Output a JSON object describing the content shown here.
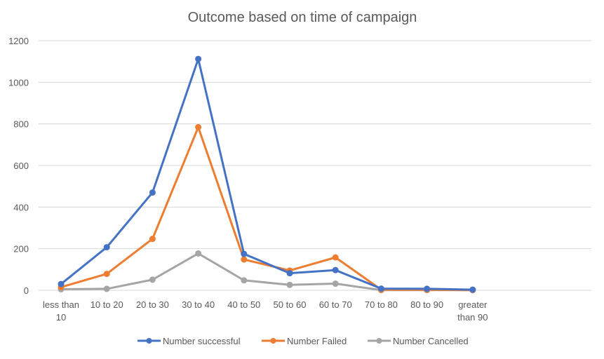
{
  "chart_data": {
    "type": "line",
    "title": "Outcome based on time of campaign",
    "xlabel": "",
    "ylabel": "",
    "categories": [
      [
        "less than",
        "10"
      ],
      [
        "10 to 20"
      ],
      [
        "20 to 30"
      ],
      [
        "30 to 40"
      ],
      [
        "40 to 50"
      ],
      [
        "50 to 60"
      ],
      [
        "60 to 70"
      ],
      [
        "70 to 80"
      ],
      [
        "80 to 90"
      ],
      [
        "greater",
        "than 90"
      ]
    ],
    "ylim": [
      0,
      1200
    ],
    "yticks": [
      0,
      200,
      400,
      600,
      800,
      1000,
      1200
    ],
    "grid": true,
    "legend": "bottom",
    "series": [
      {
        "name": "Number successful",
        "color": "#4472C4",
        "values": [
          30,
          207,
          470,
          1112,
          175,
          82,
          97,
          8,
          7,
          3
        ]
      },
      {
        "name": "Number Failed",
        "color": "#ED7D31",
        "values": [
          15,
          79,
          247,
          784,
          148,
          95,
          158,
          3,
          2,
          1
        ]
      },
      {
        "name": "Number Cancelled",
        "color": "#A5A5A5",
        "values": [
          5,
          7,
          51,
          177,
          48,
          26,
          32,
          1,
          1,
          1
        ]
      }
    ]
  }
}
